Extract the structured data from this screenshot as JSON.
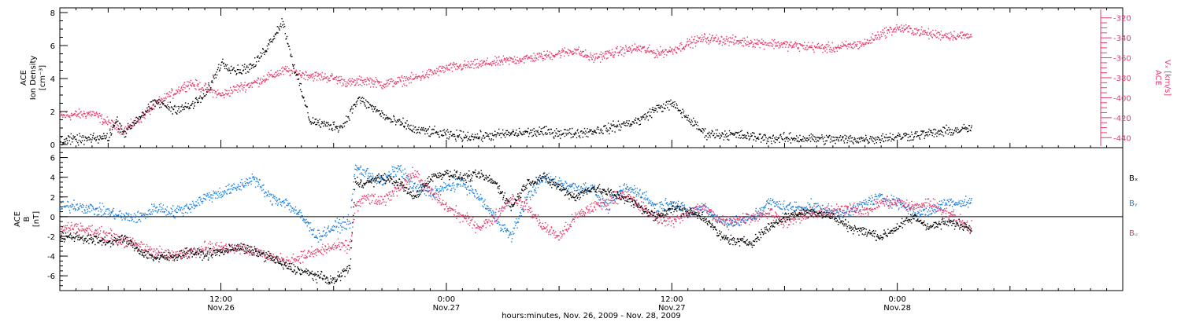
{
  "figure": {
    "xlabel": "hours:minutes, Nov. 26, 2009 - Nov. 28, 2009"
  },
  "chart_data": [
    {
      "type": "scatter",
      "panel": "top",
      "ylabel_lines": [
        "ACE",
        "Ion Density",
        "[cm⁻³]"
      ],
      "ylim": [
        0,
        8
      ],
      "yticks": [
        0,
        2,
        4,
        6,
        8
      ],
      "y2label_lines": [
        "ACE",
        "Vₓ [km/s]"
      ],
      "y2lim": [
        -450,
        -310
      ],
      "y2ticks": [
        -320,
        -340,
        -360,
        -380,
        -400,
        -420,
        -440
      ],
      "xlim_hours": [
        0,
        66
      ],
      "data_end_hours": 56.6,
      "xticks": [
        {
          "hour": 10,
          "time": "12:00",
          "date": "Nov.26"
        },
        {
          "hour": 24,
          "time": "0:00",
          "date": "Nov.27"
        },
        {
          "hour": 38,
          "time": "12:00",
          "date": "Nov.27"
        },
        {
          "hour": 52,
          "time": "0:00",
          "date": "Nov.28"
        }
      ],
      "series": [
        {
          "key": "density",
          "axis": "left",
          "color": "#000000",
          "x_hours": [
            0,
            2,
            3,
            3.5,
            4,
            4.5,
            5,
            6,
            7,
            8,
            9,
            10,
            11,
            12,
            13,
            13.8,
            14.5,
            15.5,
            16.5,
            17.5,
            18.5,
            19.5,
            20.5,
            21.5,
            22,
            23,
            24,
            26,
            28,
            30,
            32,
            34,
            36,
            37,
            38,
            40,
            42,
            44,
            46,
            48,
            50,
            52,
            54,
            56.5
          ],
          "values": [
            0.3,
            0.35,
            0.5,
            1.5,
            0.7,
            1.3,
            1.8,
            2.6,
            2.2,
            2.3,
            3.0,
            5.0,
            4.5,
            4.8,
            6.2,
            7.5,
            4.8,
            1.5,
            1.2,
            1.1,
            2.8,
            2.2,
            1.5,
            1.2,
            0.9,
            0.8,
            0.6,
            0.5,
            0.7,
            0.8,
            0.7,
            1.0,
            1.5,
            2.2,
            2.5,
            0.7,
            0.6,
            0.4,
            0.4,
            0.35,
            0.35,
            0.5,
            0.7,
            1.0
          ]
        },
        {
          "key": "vx",
          "axis": "right",
          "color": "#e63a6a",
          "x_hours": [
            0,
            2,
            3,
            4,
            5,
            6,
            7,
            8,
            9,
            10,
            11,
            12,
            13,
            14,
            15,
            16,
            17,
            18,
            19,
            20,
            21,
            22,
            24,
            26,
            28,
            30,
            32,
            33,
            35,
            36,
            37,
            38,
            39,
            40,
            42,
            44,
            46,
            48,
            50,
            51,
            52,
            53,
            54,
            56.5
          ],
          "values": [
            -418,
            -415,
            -425,
            -432,
            -420,
            -405,
            -395,
            -385,
            -390,
            -397,
            -390,
            -385,
            -378,
            -372,
            -376,
            -378,
            -380,
            -385,
            -382,
            -386,
            -383,
            -380,
            -370,
            -366,
            -362,
            -358,
            -352,
            -360,
            -352,
            -350,
            -355,
            -352,
            -345,
            -340,
            -343,
            -345,
            -348,
            -350,
            -345,
            -335,
            -330,
            -332,
            -336,
            -338
          ]
        }
      ]
    },
    {
      "type": "scatter",
      "panel": "bottom",
      "ylabel_lines": [
        "ACE",
        "B",
        "[nT]"
      ],
      "ylim": [
        -7.5,
        7
      ],
      "yticks": [
        -6,
        -4,
        -2,
        0,
        2,
        4,
        6
      ],
      "zero_line": true,
      "xlim_hours": [
        0,
        66
      ],
      "data_end_hours": 56.6,
      "legend_placement": "right",
      "series": [
        {
          "key": "bx",
          "name": "Bₓ",
          "legend_label": "Bₓ",
          "color": "#000000",
          "x_hours": [
            0,
            1,
            2,
            3,
            4,
            5,
            6,
            7,
            8,
            9,
            10,
            11,
            12,
            13,
            14,
            15,
            16,
            17,
            18,
            18.3,
            19,
            20,
            21,
            22,
            23,
            24,
            25,
            26,
            27,
            28,
            29,
            30,
            31,
            32,
            33,
            34,
            35,
            36,
            37,
            38,
            39,
            40,
            41,
            42,
            43,
            44,
            45,
            46,
            47,
            48,
            49,
            50,
            51,
            52,
            53,
            54,
            55,
            56.5
          ],
          "values": [
            -2.0,
            -2.0,
            -2.3,
            -2.5,
            -2.2,
            -3.5,
            -4.2,
            -4.0,
            -3.5,
            -3.8,
            -3.5,
            -3.0,
            -3.5,
            -4.0,
            -5.0,
            -5.5,
            -6.0,
            -6.5,
            -5.0,
            3.5,
            3.5,
            4.0,
            3.5,
            2.0,
            4.0,
            4.5,
            4.0,
            4.3,
            3.5,
            1.0,
            3.5,
            4.0,
            3.0,
            2.0,
            3.0,
            2.5,
            2.0,
            1.0,
            0.0,
            1.0,
            0.5,
            0.0,
            -2.0,
            -2.5,
            -2.5,
            -1.0,
            0.0,
            0.5,
            0.5,
            0.0,
            -1.0,
            -1.5,
            -2.0,
            -1.0,
            0.0,
            -1.0,
            -0.5,
            -1.0
          ]
        },
        {
          "key": "by",
          "name": "Bᵧ",
          "legend_label": "Bᵧ",
          "color": "#1a80e0",
          "x_hours": [
            0,
            1,
            2,
            3,
            4,
            5,
            6,
            7,
            8,
            9,
            10,
            11,
            12,
            13,
            14,
            15,
            16,
            17,
            18,
            18.3,
            19,
            20,
            21,
            22,
            23,
            24,
            25,
            26,
            27,
            28,
            29,
            30,
            31,
            32,
            33,
            34,
            35,
            36,
            37,
            38,
            39,
            40,
            41,
            42,
            43,
            44,
            45,
            46,
            47,
            48,
            49,
            50,
            51,
            52,
            53,
            54,
            55,
            56.5
          ],
          "values": [
            1.0,
            1.2,
            0.8,
            0.5,
            0.0,
            0.0,
            1.0,
            0.5,
            1.0,
            2.0,
            2.5,
            3.0,
            4.0,
            2.0,
            1.5,
            0.0,
            -2.0,
            -1.0,
            -0.5,
            5.0,
            4.5,
            3.5,
            5.0,
            3.0,
            2.5,
            3.0,
            3.5,
            2.0,
            0.0,
            -2.0,
            2.0,
            4.0,
            3.5,
            3.0,
            3.0,
            1.0,
            3.0,
            2.5,
            1.0,
            1.5,
            0.5,
            1.0,
            -0.5,
            -0.5,
            0.0,
            1.5,
            1.0,
            1.0,
            1.0,
            0.5,
            0.5,
            1.5,
            2.0,
            1.5,
            0.5,
            0.5,
            1.5,
            1.5
          ]
        },
        {
          "key": "bz",
          "name": "Bᵤ",
          "legend_label": "Bᵤ",
          "color": "#e63a6a",
          "x_hours": [
            0,
            1,
            2,
            3,
            4,
            5,
            6,
            7,
            8,
            9,
            10,
            11,
            12,
            13,
            14,
            15,
            16,
            17,
            18,
            18.3,
            19,
            20,
            21,
            22,
            23,
            24,
            25,
            26,
            27,
            28,
            29,
            30,
            31,
            32,
            33,
            34,
            35,
            36,
            37,
            38,
            39,
            40,
            41,
            42,
            43,
            44,
            45,
            46,
            47,
            48,
            49,
            50,
            51,
            52,
            53,
            54,
            55,
            56.5
          ],
          "values": [
            -1.2,
            -1.0,
            -1.5,
            -1.8,
            -2.5,
            -3.0,
            -3.5,
            -4.0,
            -3.5,
            -3.0,
            -3.2,
            -3.0,
            -3.5,
            -4.0,
            -4.5,
            -4.0,
            -3.5,
            -3.0,
            -3.0,
            1.0,
            2.0,
            1.5,
            3.0,
            4.5,
            2.5,
            1.0,
            0.0,
            -1.0,
            0.0,
            2.0,
            1.0,
            -1.0,
            -2.0,
            0.0,
            1.0,
            1.5,
            2.5,
            1.0,
            0.0,
            -0.5,
            0.5,
            1.0,
            -0.5,
            -0.3,
            0.0,
            0.5,
            -0.5,
            0.0,
            0.5,
            0.5,
            1.0,
            0.5,
            1.5,
            1.5,
            1.0,
            1.5,
            0.5,
            -1.0
          ]
        }
      ]
    }
  ]
}
